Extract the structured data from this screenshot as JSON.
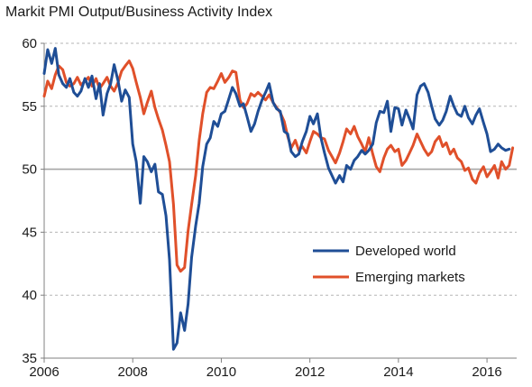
{
  "chart_data": {
    "type": "line",
    "title": "Markit PMI Output/Business Activity Index",
    "xlabel": "",
    "ylabel": "",
    "xlim": [
      2006.0,
      2016.67
    ],
    "ylim": [
      35,
      60
    ],
    "x_ticks": [
      2006,
      2008,
      2010,
      2012,
      2014,
      2016
    ],
    "y_ticks": [
      35,
      40,
      45,
      50,
      55,
      60
    ],
    "grid": "horizontal-dashed",
    "reference_line": 50,
    "legend_position": "inside-bottom-right",
    "series": [
      {
        "name": "Developed world",
        "color": "#1f4e96",
        "points": [
          [
            2006.0,
            57.6
          ],
          [
            2006.08,
            59.5
          ],
          [
            2006.17,
            58.4
          ],
          [
            2006.25,
            59.6
          ],
          [
            2006.33,
            57.5
          ],
          [
            2006.42,
            56.8
          ],
          [
            2006.5,
            56.5
          ],
          [
            2006.58,
            57.2
          ],
          [
            2006.67,
            56.1
          ],
          [
            2006.75,
            55.8
          ],
          [
            2006.83,
            56.2
          ],
          [
            2006.92,
            57.2
          ],
          [
            2007.0,
            56.5
          ],
          [
            2007.08,
            57.4
          ],
          [
            2007.17,
            55.6
          ],
          [
            2007.25,
            56.8
          ],
          [
            2007.33,
            54.3
          ],
          [
            2007.42,
            56.0
          ],
          [
            2007.5,
            56.8
          ],
          [
            2007.58,
            58.3
          ],
          [
            2007.67,
            57.0
          ],
          [
            2007.75,
            55.4
          ],
          [
            2007.83,
            56.3
          ],
          [
            2007.92,
            55.7
          ],
          [
            2008.0,
            52.0
          ],
          [
            2008.08,
            50.6
          ],
          [
            2008.17,
            47.3
          ],
          [
            2008.25,
            51.0
          ],
          [
            2008.33,
            50.6
          ],
          [
            2008.42,
            49.8
          ],
          [
            2008.5,
            50.4
          ],
          [
            2008.58,
            48.2
          ],
          [
            2008.67,
            48.0
          ],
          [
            2008.75,
            46.3
          ],
          [
            2008.83,
            42.8
          ],
          [
            2008.92,
            35.7
          ],
          [
            2009.0,
            36.2
          ],
          [
            2009.08,
            38.6
          ],
          [
            2009.17,
            37.2
          ],
          [
            2009.25,
            39.3
          ],
          [
            2009.33,
            43.0
          ],
          [
            2009.42,
            45.5
          ],
          [
            2009.5,
            47.3
          ],
          [
            2009.58,
            50.2
          ],
          [
            2009.67,
            52.0
          ],
          [
            2009.75,
            52.5
          ],
          [
            2009.83,
            53.8
          ],
          [
            2009.92,
            53.4
          ],
          [
            2010.0,
            54.4
          ],
          [
            2010.08,
            54.6
          ],
          [
            2010.17,
            55.6
          ],
          [
            2010.25,
            56.5
          ],
          [
            2010.33,
            56.0
          ],
          [
            2010.42,
            55.0
          ],
          [
            2010.5,
            55.2
          ],
          [
            2010.58,
            54.2
          ],
          [
            2010.67,
            53.0
          ],
          [
            2010.75,
            53.6
          ],
          [
            2010.83,
            54.6
          ],
          [
            2010.92,
            55.5
          ],
          [
            2011.0,
            56.1
          ],
          [
            2011.08,
            56.8
          ],
          [
            2011.17,
            55.3
          ],
          [
            2011.25,
            54.8
          ],
          [
            2011.33,
            54.6
          ],
          [
            2011.42,
            53.0
          ],
          [
            2011.5,
            52.8
          ],
          [
            2011.58,
            51.4
          ],
          [
            2011.67,
            51.0
          ],
          [
            2011.75,
            51.2
          ],
          [
            2011.83,
            52.2
          ],
          [
            2011.92,
            53.0
          ],
          [
            2012.0,
            54.2
          ],
          [
            2012.08,
            53.6
          ],
          [
            2012.17,
            54.4
          ],
          [
            2012.25,
            52.5
          ],
          [
            2012.33,
            51.3
          ],
          [
            2012.42,
            50.1
          ],
          [
            2012.5,
            49.5
          ],
          [
            2012.58,
            48.9
          ],
          [
            2012.67,
            49.5
          ],
          [
            2012.75,
            49.0
          ],
          [
            2012.83,
            50.3
          ],
          [
            2012.92,
            50.0
          ],
          [
            2013.0,
            50.7
          ],
          [
            2013.08,
            51.0
          ],
          [
            2013.17,
            51.5
          ],
          [
            2013.25,
            51.2
          ],
          [
            2013.33,
            51.5
          ],
          [
            2013.42,
            52.0
          ],
          [
            2013.5,
            53.7
          ],
          [
            2013.58,
            54.6
          ],
          [
            2013.67,
            54.5
          ],
          [
            2013.75,
            55.4
          ],
          [
            2013.83,
            53.0
          ],
          [
            2013.92,
            54.9
          ],
          [
            2014.0,
            54.8
          ],
          [
            2014.08,
            53.5
          ],
          [
            2014.17,
            54.7
          ],
          [
            2014.25,
            54.0
          ],
          [
            2014.33,
            53.2
          ],
          [
            2014.42,
            55.9
          ],
          [
            2014.5,
            56.6
          ],
          [
            2014.58,
            56.8
          ],
          [
            2014.67,
            56.1
          ],
          [
            2014.75,
            55.0
          ],
          [
            2014.83,
            54.0
          ],
          [
            2014.92,
            53.5
          ],
          [
            2015.0,
            53.9
          ],
          [
            2015.08,
            54.6
          ],
          [
            2015.17,
            55.8
          ],
          [
            2015.25,
            55.0
          ],
          [
            2015.33,
            54.4
          ],
          [
            2015.42,
            54.2
          ],
          [
            2015.5,
            55.0
          ],
          [
            2015.58,
            54.1
          ],
          [
            2015.67,
            53.6
          ],
          [
            2015.75,
            54.3
          ],
          [
            2015.83,
            54.8
          ],
          [
            2015.92,
            53.7
          ],
          [
            2016.0,
            52.8
          ],
          [
            2016.08,
            51.4
          ],
          [
            2016.17,
            51.6
          ],
          [
            2016.25,
            52.0
          ],
          [
            2016.33,
            51.7
          ],
          [
            2016.42,
            51.5
          ],
          [
            2016.5,
            51.6
          ]
        ]
      },
      {
        "name": "Emerging  markets",
        "color": "#e0502a",
        "points": [
          [
            2006.0,
            55.8
          ],
          [
            2006.08,
            57.0
          ],
          [
            2006.17,
            56.4
          ],
          [
            2006.25,
            57.5
          ],
          [
            2006.33,
            58.2
          ],
          [
            2006.42,
            57.9
          ],
          [
            2006.5,
            56.9
          ],
          [
            2006.58,
            56.6
          ],
          [
            2006.67,
            56.8
          ],
          [
            2006.75,
            57.3
          ],
          [
            2006.83,
            56.7
          ],
          [
            2006.92,
            57.0
          ],
          [
            2007.0,
            57.3
          ],
          [
            2007.08,
            56.6
          ],
          [
            2007.17,
            57.2
          ],
          [
            2007.25,
            56.4
          ],
          [
            2007.33,
            56.8
          ],
          [
            2007.42,
            57.3
          ],
          [
            2007.5,
            56.6
          ],
          [
            2007.58,
            56.2
          ],
          [
            2007.67,
            56.9
          ],
          [
            2007.75,
            57.8
          ],
          [
            2007.83,
            58.2
          ],
          [
            2007.92,
            58.6
          ],
          [
            2008.0,
            58.0
          ],
          [
            2008.08,
            56.9
          ],
          [
            2008.17,
            55.7
          ],
          [
            2008.25,
            54.4
          ],
          [
            2008.33,
            55.3
          ],
          [
            2008.42,
            56.2
          ],
          [
            2008.5,
            54.9
          ],
          [
            2008.58,
            54.0
          ],
          [
            2008.67,
            53.1
          ],
          [
            2008.75,
            51.9
          ],
          [
            2008.83,
            50.6
          ],
          [
            2008.92,
            47.2
          ],
          [
            2009.0,
            42.4
          ],
          [
            2009.08,
            41.9
          ],
          [
            2009.17,
            42.2
          ],
          [
            2009.25,
            45.1
          ],
          [
            2009.33,
            47.2
          ],
          [
            2009.42,
            49.5
          ],
          [
            2009.5,
            52.3
          ],
          [
            2009.58,
            54.4
          ],
          [
            2009.67,
            56.1
          ],
          [
            2009.75,
            56.5
          ],
          [
            2009.83,
            56.4
          ],
          [
            2009.92,
            57.0
          ],
          [
            2010.0,
            57.6
          ],
          [
            2010.08,
            56.9
          ],
          [
            2010.17,
            57.3
          ],
          [
            2010.25,
            57.8
          ],
          [
            2010.33,
            57.7
          ],
          [
            2010.42,
            55.5
          ],
          [
            2010.5,
            54.9
          ],
          [
            2010.58,
            55.2
          ],
          [
            2010.67,
            56.0
          ],
          [
            2010.75,
            55.8
          ],
          [
            2010.83,
            56.1
          ],
          [
            2010.92,
            55.8
          ],
          [
            2011.0,
            55.5
          ],
          [
            2011.08,
            55.9
          ],
          [
            2011.17,
            55.3
          ],
          [
            2011.25,
            54.9
          ],
          [
            2011.33,
            54.5
          ],
          [
            2011.42,
            53.8
          ],
          [
            2011.5,
            52.6
          ],
          [
            2011.58,
            51.7
          ],
          [
            2011.67,
            52.3
          ],
          [
            2011.75,
            51.5
          ],
          [
            2011.83,
            51.8
          ],
          [
            2011.92,
            51.3
          ],
          [
            2012.0,
            52.2
          ],
          [
            2012.08,
            53.0
          ],
          [
            2012.17,
            52.8
          ],
          [
            2012.25,
            52.5
          ],
          [
            2012.33,
            52.4
          ],
          [
            2012.42,
            51.5
          ],
          [
            2012.5,
            51.0
          ],
          [
            2012.58,
            50.5
          ],
          [
            2012.67,
            51.3
          ],
          [
            2012.75,
            52.2
          ],
          [
            2012.83,
            53.2
          ],
          [
            2012.92,
            52.8
          ],
          [
            2013.0,
            53.4
          ],
          [
            2013.08,
            52.6
          ],
          [
            2013.17,
            52.0
          ],
          [
            2013.25,
            51.4
          ],
          [
            2013.33,
            52.5
          ],
          [
            2013.42,
            51.2
          ],
          [
            2013.5,
            50.2
          ],
          [
            2013.58,
            49.8
          ],
          [
            2013.67,
            50.9
          ],
          [
            2013.75,
            51.6
          ],
          [
            2013.83,
            51.9
          ],
          [
            2013.92,
            51.4
          ],
          [
            2014.0,
            51.6
          ],
          [
            2014.08,
            50.3
          ],
          [
            2014.17,
            50.7
          ],
          [
            2014.25,
            51.3
          ],
          [
            2014.33,
            51.9
          ],
          [
            2014.42,
            52.8
          ],
          [
            2014.5,
            52.2
          ],
          [
            2014.58,
            51.6
          ],
          [
            2014.67,
            51.1
          ],
          [
            2014.75,
            51.4
          ],
          [
            2014.83,
            52.2
          ],
          [
            2014.92,
            52.6
          ],
          [
            2015.0,
            51.8
          ],
          [
            2015.08,
            52.1
          ],
          [
            2015.17,
            51.2
          ],
          [
            2015.25,
            51.6
          ],
          [
            2015.33,
            50.9
          ],
          [
            2015.42,
            50.6
          ],
          [
            2015.5,
            49.9
          ],
          [
            2015.58,
            50.1
          ],
          [
            2015.67,
            49.2
          ],
          [
            2015.75,
            48.9
          ],
          [
            2015.83,
            49.7
          ],
          [
            2015.92,
            50.2
          ],
          [
            2016.0,
            49.4
          ],
          [
            2016.08,
            49.8
          ],
          [
            2016.17,
            50.3
          ],
          [
            2016.25,
            49.3
          ],
          [
            2016.33,
            50.6
          ],
          [
            2016.42,
            50.0
          ],
          [
            2016.5,
            50.3
          ],
          [
            2016.58,
            51.7
          ]
        ]
      }
    ]
  }
}
